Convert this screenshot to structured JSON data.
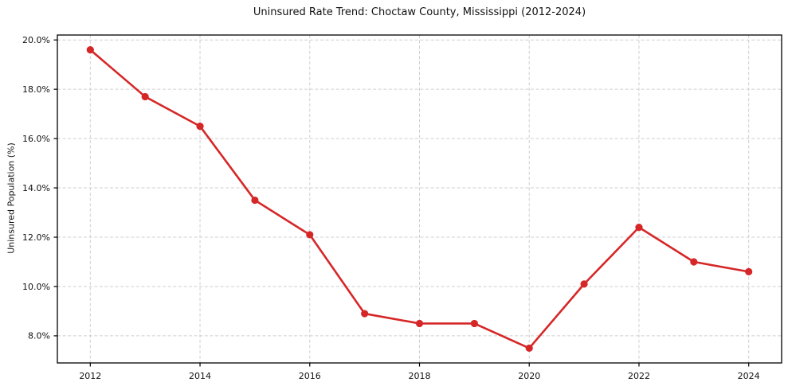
{
  "chart_data": {
    "type": "line",
    "title": "Uninsured Rate Trend: Choctaw County, Mississippi (2012-2024)",
    "xlabel": "",
    "ylabel": "Uninsured Population (%)",
    "x": [
      2012,
      2013,
      2014,
      2015,
      2016,
      2017,
      2018,
      2019,
      2020,
      2021,
      2022,
      2023,
      2024
    ],
    "values": [
      19.6,
      17.7,
      16.5,
      13.5,
      12.1,
      8.9,
      8.5,
      8.5,
      7.5,
      10.1,
      12.4,
      11.0,
      10.6
    ],
    "xlim": [
      2011.4,
      2024.6
    ],
    "ylim": [
      6.9,
      20.2
    ],
    "x_ticks": [
      2012,
      2014,
      2016,
      2018,
      2020,
      2022,
      2024
    ],
    "x_tick_labels": [
      "2012",
      "2014",
      "2016",
      "2018",
      "2020",
      "2022",
      "2024"
    ],
    "y_ticks": [
      8,
      10,
      12,
      14,
      16,
      18,
      20
    ],
    "y_tick_labels": [
      "8.0%",
      "10.0%",
      "12.0%",
      "14.0%",
      "16.0%",
      "18.0%",
      "20.0%"
    ],
    "grid": "dashed",
    "grid_color": "#cfcfcf",
    "legend": "none",
    "line_color": "#d62728",
    "marker": "circle",
    "spine_color": "#000000"
  }
}
